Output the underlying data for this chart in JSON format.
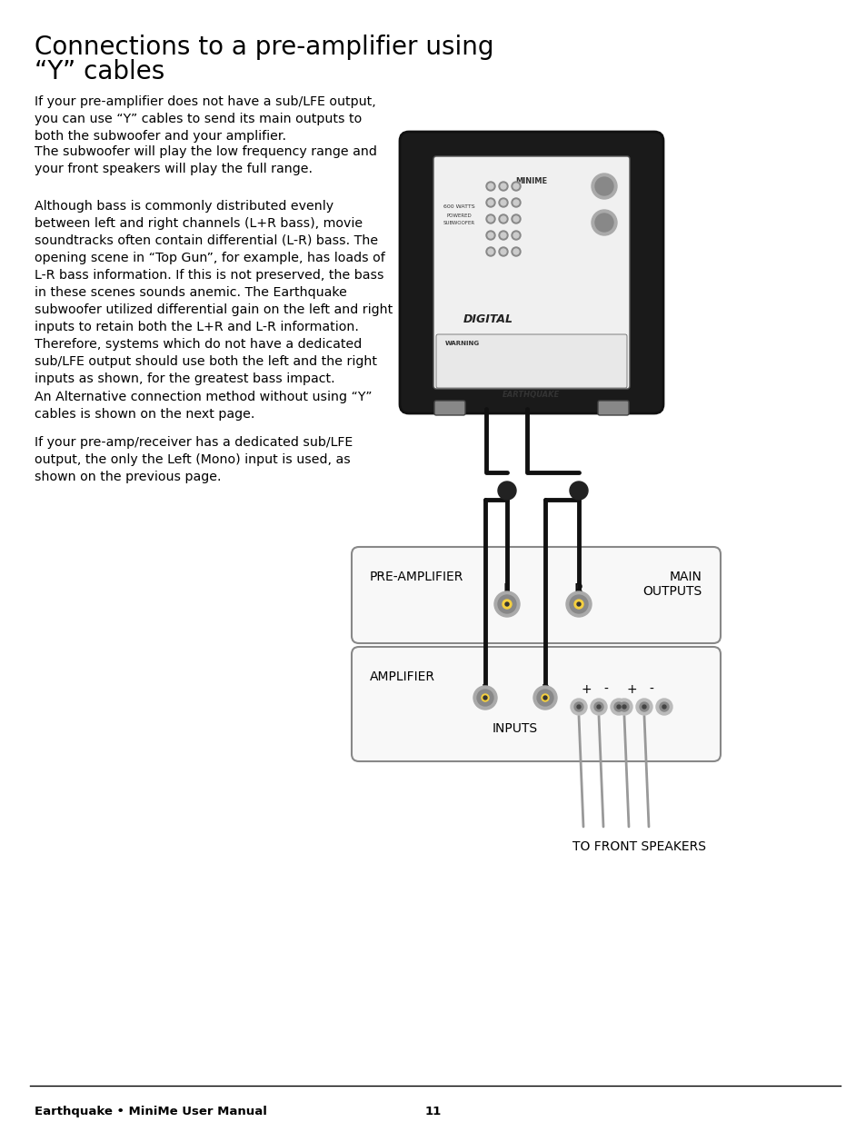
{
  "title": "Connections to a pre-amplifier using\n“Y” cables",
  "title_fontsize": 20,
  "body_fontsize": 10.5,
  "background_color": "#ffffff",
  "text_color": "#000000",
  "footer_text": "Earthquake • MiniMe User Manual",
  "page_number": "11",
  "paragraphs": [
    "If your pre-amplifier does not have a sub/LFE output,\nyou can use “Y” cables to send its main outputs to\nboth the subwoofer and your amplifier.",
    "The subwoofer will play the low frequency range and\nyour front speakers will play the full range.",
    "Although bass is commonly distributed evenly\nbetween left and right channels (L+R bass), movie\nsoundtracks often contain differential (L-R) bass. The\nopening scene in “Top Gun”, for example, has loads of\nL-R bass information. If this is not preserved, the bass\nin these scenes sounds anemic. The Earthquake\nsubwoofer utilized differential gain on the left and right\ninputs to retain both the L+R and L-R information.\nTherefore, systems which do not have a dedicated\nsub/LFE output should use both the left and the right\ninputs as shown, for the greatest bass impact.",
    "An Alternative connection method without using “Y”\ncables is shown on the next page.",
    "If your pre-amp/receiver has a dedicated sub/LFE\noutput, the only the Left (Mono) input is used, as\nshown on the previous page."
  ]
}
